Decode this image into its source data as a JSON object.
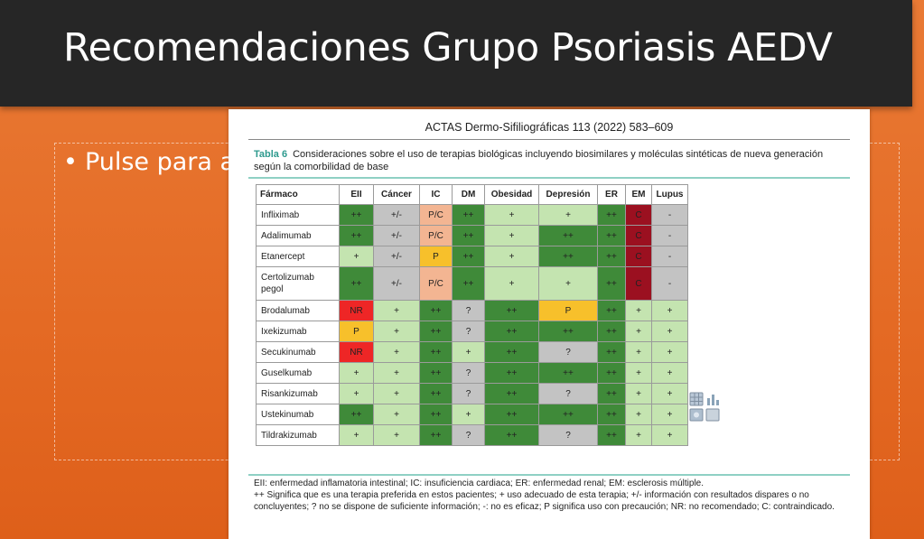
{
  "slide": {
    "title": "Recomendaciones Grupo Psoriasis AEDV",
    "placeholder": "Pulse para a",
    "bullet": "•"
  },
  "article": {
    "journal_header": "ACTAS Dermo-Sifiliográficas 113 (2022) 583–609",
    "table_label": "Tabla 6",
    "caption_line1": "Consideraciones sobre el uso de terapias biológicas incluyendo biosimilares y moléculas sintéticas de nueva generación",
    "caption_line2": "según la comorbilidad de base",
    "columns": [
      "Fármaco",
      "EII",
      "Cáncer",
      "IC",
      "DM",
      "Obesidad",
      "Depresión",
      "ER",
      "EM",
      "Lupus"
    ],
    "rows": [
      {
        "drug": [
          "Infliximab"
        ],
        "cells": [
          [
            "++",
            "dg"
          ],
          [
            "+/-",
            "gr"
          ],
          [
            "P/C",
            "pe"
          ],
          [
            "++",
            "dg"
          ],
          [
            "+",
            "lg"
          ],
          [
            "+",
            "lg"
          ],
          [
            "++",
            "dg"
          ],
          [
            "C",
            "dr"
          ],
          [
            "-",
            "gr"
          ]
        ]
      },
      {
        "drug": [
          "Adalimumab"
        ],
        "cells": [
          [
            "++",
            "dg"
          ],
          [
            "+/-",
            "gr"
          ],
          [
            "P/C",
            "pe"
          ],
          [
            "++",
            "dg"
          ],
          [
            "+",
            "lg"
          ],
          [
            "++",
            "dg"
          ],
          [
            "++",
            "dg"
          ],
          [
            "C",
            "dr"
          ],
          [
            "-",
            "gr"
          ]
        ]
      },
      {
        "drug": [
          "Etanercept"
        ],
        "cells": [
          [
            "+",
            "lg"
          ],
          [
            "+/-",
            "gr"
          ],
          [
            "P",
            "ye"
          ],
          [
            "++",
            "dg"
          ],
          [
            "+",
            "lg"
          ],
          [
            "++",
            "dg"
          ],
          [
            "++",
            "dg"
          ],
          [
            "C",
            "dr"
          ],
          [
            "-",
            "gr"
          ]
        ]
      },
      {
        "drug": [
          "Certolizumab",
          "pegol"
        ],
        "cells": [
          [
            "++",
            "dg"
          ],
          [
            "+/-",
            "gr"
          ],
          [
            "P/C",
            "pe"
          ],
          [
            "++",
            "dg"
          ],
          [
            "+",
            "lg"
          ],
          [
            "+",
            "lg"
          ],
          [
            "++",
            "dg"
          ],
          [
            "C",
            "dr"
          ],
          [
            "-",
            "gr"
          ]
        ]
      },
      {
        "drug": [
          "Brodalumab"
        ],
        "cells": [
          [
            "NR",
            "rd"
          ],
          [
            "+",
            "lg"
          ],
          [
            "++",
            "dg"
          ],
          [
            "?",
            "gr"
          ],
          [
            "++",
            "dg"
          ],
          [
            "P",
            "ye"
          ],
          [
            "++",
            "dg"
          ],
          [
            "+",
            "lg"
          ],
          [
            "+",
            "lg"
          ]
        ]
      },
      {
        "drug": [
          "Ixekizumab"
        ],
        "cells": [
          [
            "P",
            "ye"
          ],
          [
            "+",
            "lg"
          ],
          [
            "++",
            "dg"
          ],
          [
            "?",
            "gr"
          ],
          [
            "++",
            "dg"
          ],
          [
            "++",
            "dg"
          ],
          [
            "++",
            "dg"
          ],
          [
            "+",
            "lg"
          ],
          [
            "+",
            "lg"
          ]
        ]
      },
      {
        "drug": [
          "Secukinumab"
        ],
        "cells": [
          [
            "NR",
            "rd"
          ],
          [
            "+",
            "lg"
          ],
          [
            "++",
            "dg"
          ],
          [
            "+",
            "lg"
          ],
          [
            "++",
            "dg"
          ],
          [
            "?",
            "gr"
          ],
          [
            "++",
            "dg"
          ],
          [
            "+",
            "lg"
          ],
          [
            "+",
            "lg"
          ]
        ]
      },
      {
        "drug": [
          "Guselkumab"
        ],
        "cells": [
          [
            "+",
            "lg"
          ],
          [
            "+",
            "lg"
          ],
          [
            "++",
            "dg"
          ],
          [
            "?",
            "gr"
          ],
          [
            "++",
            "dg"
          ],
          [
            "++",
            "dg"
          ],
          [
            "++",
            "dg"
          ],
          [
            "+",
            "lg"
          ],
          [
            "+",
            "lg"
          ]
        ]
      },
      {
        "drug": [
          "Risankizumab"
        ],
        "cells": [
          [
            "+",
            "lg"
          ],
          [
            "+",
            "lg"
          ],
          [
            "++",
            "dg"
          ],
          [
            "?",
            "gr"
          ],
          [
            "++",
            "dg"
          ],
          [
            "?",
            "gr"
          ],
          [
            "++",
            "dg"
          ],
          [
            "+",
            "lg"
          ],
          [
            "+",
            "lg"
          ]
        ]
      },
      {
        "drug": [
          "Ustekinumab"
        ],
        "cells": [
          [
            "++",
            "dg"
          ],
          [
            "+",
            "lg"
          ],
          [
            "++",
            "dg"
          ],
          [
            "+",
            "lg"
          ],
          [
            "++",
            "dg"
          ],
          [
            "++",
            "dg"
          ],
          [
            "++",
            "dg"
          ],
          [
            "+",
            "lg"
          ],
          [
            "+",
            "lg"
          ]
        ]
      },
      {
        "drug": [
          "Tildrakizumab"
        ],
        "cells": [
          [
            "+",
            "lg"
          ],
          [
            "+",
            "lg"
          ],
          [
            "++",
            "dg"
          ],
          [
            "?",
            "gr"
          ],
          [
            "++",
            "dg"
          ],
          [
            "?",
            "gr"
          ],
          [
            "++",
            "dg"
          ],
          [
            "+",
            "lg"
          ],
          [
            "+",
            "lg"
          ]
        ]
      }
    ],
    "footnote_1": "EII: enfermedad inflamatoria intestinal; IC: insuficiencia cardiaca; ER: enfermedad renal; EM: esclerosis múltiple.",
    "footnote_2": "++ Significa que es una terapia preferida en estos pacientes; + uso adecuado de esta terapia; +/- información con resultados dispares o no concluyentes; ? no se dispone de suficiente información; -: no es eficaz; P significa uso con precaución; NR: no recomendado; C: contraindicado."
  },
  "colors": {
    "title_bar": "#262626",
    "background": "#e46a24",
    "dark_green": "#3f8a39",
    "light_green": "#c4e4b0",
    "gray": "#c3c3c3",
    "peach": "#f3b592",
    "yellow": "#f7c02b",
    "red": "#ee2626",
    "dark_red": "#9b1020"
  },
  "icons": {
    "overlay": "content-placeholder-icons"
  }
}
